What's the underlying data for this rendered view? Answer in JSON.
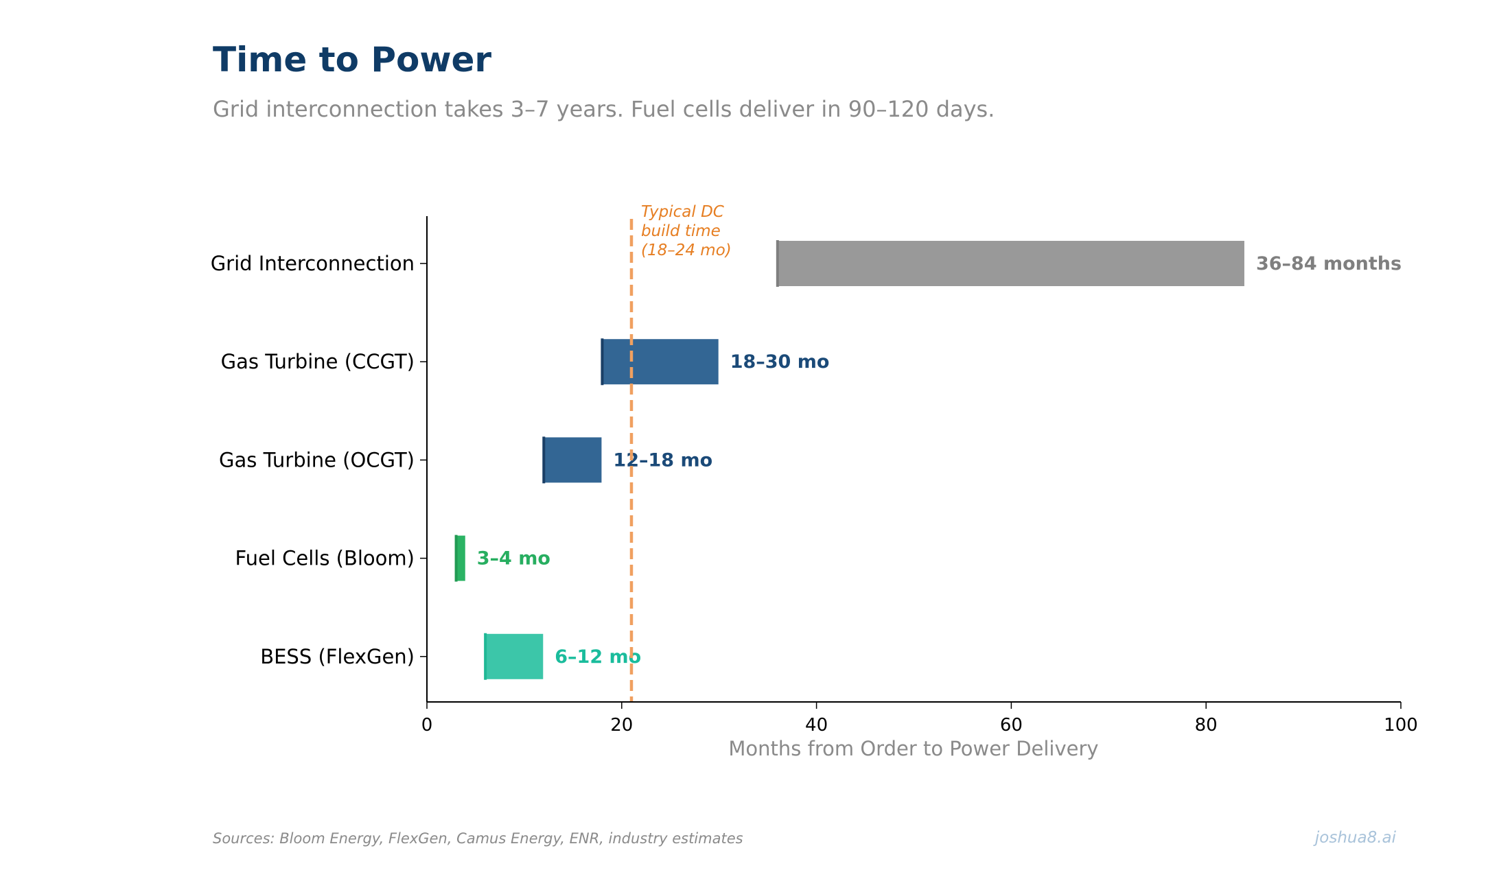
{
  "header": {
    "title": "Time to Power",
    "subtitle": "Grid interconnection takes 3–7 years. Fuel cells deliver in 90–120 days."
  },
  "footer": {
    "source": "Sources: Bloom Energy, FlexGen, Camus Energy, ENR, industry estimates",
    "brand": "joshua8.ai"
  },
  "chart_data": {
    "type": "bar",
    "orientation": "horizontal-range",
    "title": "Time to Power",
    "subtitle": "Grid interconnection takes 3–7 years. Fuel cells deliver in 90–120 days.",
    "xlabel": "Months from Order to Power Delivery",
    "ylabel": "",
    "xlim": [
      0,
      100
    ],
    "xticks": [
      0,
      20,
      40,
      60,
      80,
      100
    ],
    "grid": false,
    "legend": "none",
    "categories": [
      "Grid Interconnection",
      "Gas Turbine (CCGT)",
      "Gas Turbine (OCGT)",
      "Fuel Cells (Bloom)",
      "BESS (FlexGen)"
    ],
    "ranges": [
      {
        "start": 36,
        "end": 84,
        "label": "36–84 months",
        "color": "#999999",
        "edge_color": "#7f7f7f",
        "label_color": "#7f7f7f"
      },
      {
        "start": 18,
        "end": 30,
        "label": "18–30 mo",
        "color": "#336694",
        "edge_color": "#1a3f66",
        "label_color": "#1b4a78"
      },
      {
        "start": 12,
        "end": 18,
        "label": "12–18 mo",
        "color": "#336694",
        "edge_color": "#1a3f66",
        "label_color": "#1b4a78"
      },
      {
        "start": 3,
        "end": 4,
        "label": "3–4 mo",
        "color": "#2bb364",
        "edge_color": "#229a53",
        "label_color": "#27ae60"
      },
      {
        "start": 6,
        "end": 12,
        "label": "6–12 mo",
        "color": "#3cc6a9",
        "edge_color": "#1fb895",
        "label_color": "#1abc9c"
      }
    ],
    "reference_line": {
      "x": 21,
      "label": [
        "Typical DC",
        "build time",
        "(18–24 mo)"
      ],
      "color": "#f0a060",
      "label_color": "#e67e22"
    }
  }
}
